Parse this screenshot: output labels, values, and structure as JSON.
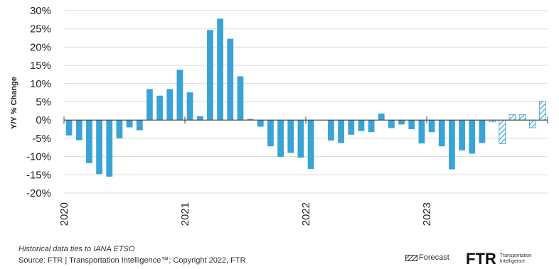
{
  "chart_data": {
    "type": "bar",
    "title": "",
    "ylabel": "Y/Y % Change",
    "xlabel": "",
    "ylim": [
      -20,
      30
    ],
    "yticks": [
      30,
      25,
      20,
      15,
      10,
      5,
      0,
      -5,
      -10,
      -15,
      -20
    ],
    "ytick_labels": [
      "30%",
      "25%",
      "20%",
      "15%",
      "10%",
      "5%",
      "0%",
      "-5%",
      "-10%",
      "-15%",
      "-20%"
    ],
    "year_labels": [
      "2020",
      "2021",
      "2022",
      "2023"
    ],
    "start_year": 2020,
    "forecast_start_index": 42,
    "values": [
      -4.2,
      -5.5,
      -11.8,
      -14.8,
      -15.5,
      -5.0,
      -2.0,
      -2.8,
      8.5,
      6.7,
      8.5,
      13.8,
      7.6,
      1.1,
      24.7,
      27.8,
      22.3,
      12.0,
      0.3,
      -1.8,
      -7.2,
      -10.1,
      -9.0,
      -10.3,
      -13.4,
      0,
      -5.6,
      -6.3,
      -4.0,
      -3.0,
      -3.3,
      1.8,
      -2.2,
      -1.2,
      -2.5,
      -6.4,
      -3.3,
      -7.2,
      -13.5,
      -8.3,
      -9.2,
      -6.3,
      -0.5,
      -6.5,
      1.5,
      1.5,
      -2.1,
      5.2
    ],
    "colors": {
      "bar": "#3aa3d6",
      "axis": "#444444",
      "grid": "#d9d9d9"
    }
  },
  "footer": {
    "note": "Historical data ties to IANA ETSO",
    "source": "Source: FTR | Transportation Intelligence™; Copyright 2022, FTR"
  },
  "legend": {
    "forecast_label": "Forecast"
  },
  "logo": {
    "text": "FTR",
    "subtitle": "Transportation Intelligence"
  }
}
